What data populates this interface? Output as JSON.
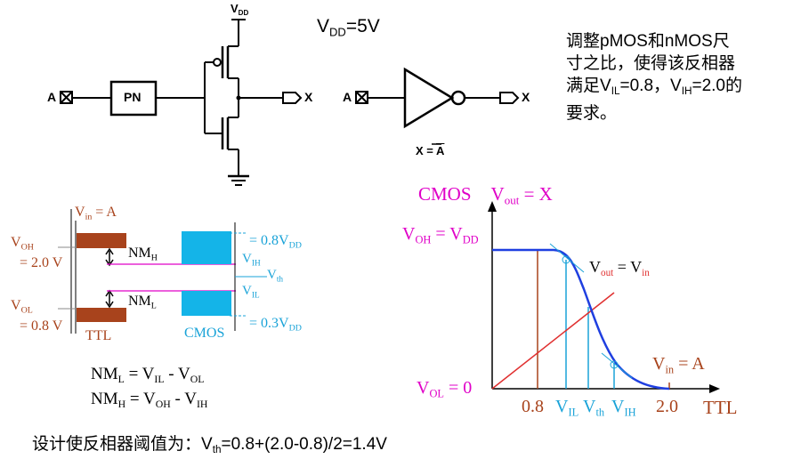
{
  "circuit": {
    "vdd_label": "V",
    "vdd_sub": "DD",
    "supply_label": "V",
    "supply_sub": "DD",
    "supply_value": "=5V",
    "input_a": "A",
    "input_a2": "A",
    "pn_block": "PN",
    "output_x": "X",
    "output_x2": "X",
    "equation": "X = A"
  },
  "note": {
    "line1": "调整pMOS和nMOS尺",
    "line2": "寸之比，使得该反相器",
    "line3_pre": "满足V",
    "line3_sub1": "IL",
    "line3_mid": "=0.8，V",
    "line3_sub2": "IH",
    "line3_post": "=2.0的",
    "line4": "要求。"
  },
  "levels": {
    "vin": "V",
    "vin_sub": "in",
    "vin_eq": " = A",
    "voh": "V",
    "voh_sub": "OH",
    "voh_val": "= 2.0 V",
    "vol": "V",
    "vol_sub": "OL",
    "vol_val": "= 0.8 V",
    "nmh": "NM",
    "nmh_sub": "H",
    "nml": "NM",
    "nml_sub": "L",
    "ttl": "TTL",
    "cmos": "CMOS",
    "vih": "V",
    "vih_sub": "IH",
    "vil": "V",
    "vil_sub": "IL",
    "vth": "V",
    "vth_sub": "th",
    "cmos_high": "= 0.8V",
    "cmos_high_sub": "DD",
    "cmos_low": "= 0.3V",
    "cmos_low_sub": "DD"
  },
  "formulas": {
    "nml_lhs": "NM",
    "nml_lhs_sub": "L",
    "nml_eq": " = V",
    "nml_a_sub": "IL",
    "nml_minus": " - V",
    "nml_b_sub": "OL",
    "nmh_lhs": "NM",
    "nmh_lhs_sub": "H",
    "nmh_eq": " = V",
    "nmh_a_sub": "OH",
    "nmh_minus": " - V",
    "nmh_b_sub": "IH"
  },
  "transfer": {
    "title": "CMOS",
    "vout": "V",
    "vout_sub": "out",
    "vout_eq": " = X",
    "voh": "V",
    "voh_sub": "OH",
    "voh_eq": " = V",
    "voh_eq_sub": "DD",
    "diag": "V",
    "diag_sub": "out",
    "diag_eq": " = V",
    "diag_eq_sub": "in",
    "vin": "V",
    "vin_sub": "in",
    "vin_eq": " = A",
    "vol": "V",
    "vol_sub": "OL",
    "vol_eq": " = 0",
    "tick_08": "0.8",
    "tick_20": "2.0",
    "ttl": "TTL",
    "vil": "V",
    "vil_sub": "IL",
    "vth": "V",
    "vth_sub": "th",
    "vih": "V",
    "vih_sub": "IH"
  },
  "footer": {
    "pre": "设计使反相器阈值为：V",
    "sub": "th",
    "post": "=0.8+(2.0-0.8)/2=1.4V"
  },
  "colors": {
    "magenta": "#e000c8",
    "cyan": "#1aa3d8",
    "brown": "#a8431c",
    "curve": "#1f3fe0",
    "diagonal": "#e03030",
    "bar_cmos": "#14b4e8"
  }
}
